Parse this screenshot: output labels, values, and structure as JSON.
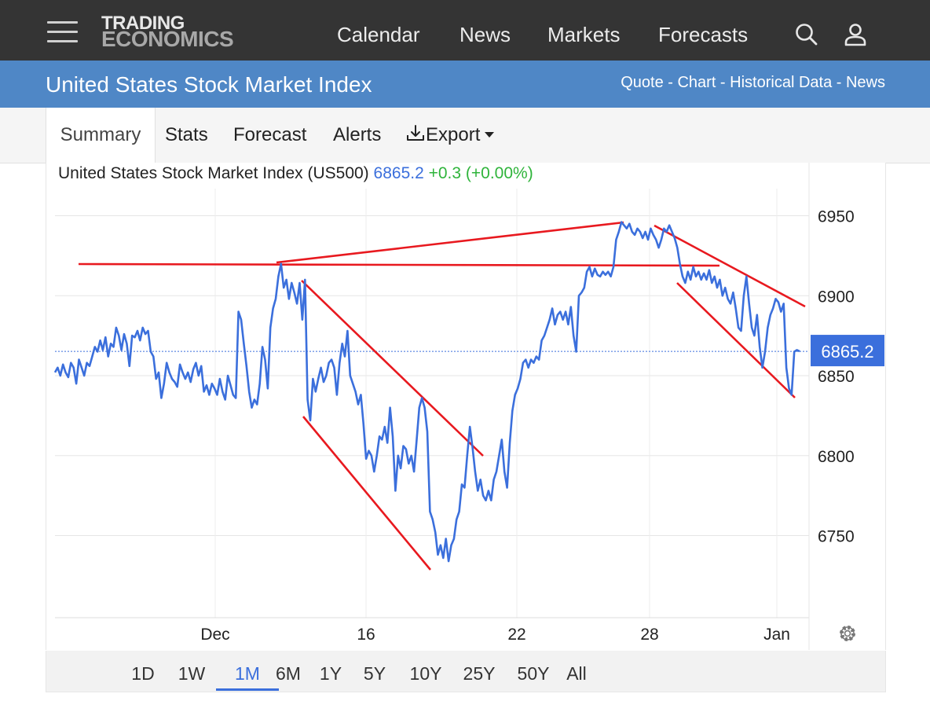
{
  "header": {
    "logo_line1": "TRADING",
    "logo_line2": "ECONOMICS",
    "nav": [
      "Calendar",
      "News",
      "Markets",
      "Forecasts"
    ]
  },
  "title_bar": {
    "title": "United States Stock Market Index",
    "links": [
      "Quote",
      "Chart",
      "Historical Data",
      "News"
    ],
    "separator": " - "
  },
  "tabs": {
    "summary": "Summary",
    "stats": "Stats",
    "forecast": "Forecast",
    "alerts": "Alerts",
    "export": "Export"
  },
  "quote": {
    "name": "United States Stock Market Index (US500)",
    "price": "6865.2",
    "change": "+0.3 (+0.00%)"
  },
  "ranges": [
    "1D",
    "1W",
    "1M",
    "6M",
    "1Y",
    "5Y",
    "10Y",
    "25Y",
    "50Y",
    "All"
  ],
  "active_range": "1M",
  "colors": {
    "topbar": "#343434",
    "titlebar": "#4f87c6",
    "series": "#3b6fdc",
    "trendlines": "#e8191f",
    "positive": "#2fb43b"
  },
  "chart_data": {
    "type": "line",
    "series": [
      {
        "values": [
          6852,
          6855,
          6850,
          6857,
          6852,
          6849,
          6858,
          6855,
          6845,
          6860,
          6855,
          6850,
          6858,
          6856,
          6862,
          6868,
          6865,
          6872,
          6866,
          6874,
          6862,
          6870,
          6868,
          6880,
          6875,
          6866,
          6876,
          6870,
          6856,
          6875,
          6874,
          6878,
          6872,
          6880,
          6876,
          6878,
          6865,
          6862,
          6848,
          6852,
          6836,
          6845,
          6858,
          6852,
          6848,
          6846,
          6843,
          6857,
          6852,
          6848,
          6852,
          6846,
          6854,
          6858,
          6850,
          6856,
          6840,
          6844,
          6838,
          6845,
          6842,
          6838,
          6848,
          6840,
          6835,
          6850,
          6844,
          6838,
          6836,
          6890,
          6885,
          6870,
          6856,
          6840,
          6830,
          6835,
          6832,
          6845,
          6868,
          6860,
          6842,
          6880,
          6892,
          6898,
          6912,
          6920,
          6905,
          6910,
          6898,
          6908,
          6902,
          6895,
          6908,
          6885,
          6910,
          6835,
          6822,
          6848,
          6840,
          6848,
          6855,
          6846,
          6850,
          6858,
          6860,
          6855,
          6838,
          6858,
          6870,
          6862,
          6878,
          6850,
          6845,
          6840,
          6832,
          6838,
          6820,
          6798,
          6803,
          6800,
          6790,
          6800,
          6812,
          6810,
          6818,
          6808,
          6830,
          6812,
          6778,
          6800,
          6792,
          6806,
          6804,
          6795,
          6800,
          6790,
          6810,
          6830,
          6836,
          6830,
          6815,
          6765,
          6760,
          6752,
          6738,
          6744,
          6736,
          6748,
          6734,
          6744,
          6748,
          6760,
          6765,
          6782,
          6780,
          6800,
          6818,
          6805,
          6790,
          6778,
          6785,
          6775,
          6772,
          6778,
          6772,
          6785,
          6790,
          6800,
          6810,
          6790,
          6780,
          6808,
          6828,
          6838,
          6842,
          6848,
          6858,
          6860,
          6855,
          6860,
          6858,
          6862,
          6860,
          6872,
          6875,
          6880,
          6885,
          6892,
          6882,
          6888,
          6890,
          6885,
          6890,
          6882,
          6893,
          6875,
          6865,
          6900,
          6902,
          6905,
          6915,
          6918,
          6912,
          6917,
          6913,
          6912,
          6915,
          6913,
          6915,
          6912,
          6918,
          6935,
          6940,
          6946,
          6944,
          6942,
          6945,
          6940,
          6938,
          6942,
          6940,
          6936,
          6940,
          6935,
          6942,
          6938,
          6935,
          6930,
          6935,
          6942,
          6940,
          6944,
          6940,
          6936,
          6930,
          6920,
          6912,
          6908,
          6915,
          6910,
          6918,
          6912,
          6915,
          6910,
          6914,
          6910,
          6916,
          6908,
          6912,
          6905,
          6910,
          6900,
          6905,
          6898,
          6895,
          6902,
          6892,
          6880,
          6878,
          6900,
          6912,
          6895,
          6880,
          6875,
          6888,
          6868,
          6855,
          6865,
          6880,
          6888,
          6892,
          6898,
          6896,
          6890,
          6895,
          6855,
          6842,
          6838,
          6865,
          6866,
          6865.2
        ]
      }
    ],
    "x_ticks": [
      "Dec",
      "16",
      "22",
      "28",
      "Jan"
    ],
    "y_ticks": [
      6750,
      6800,
      6850,
      6900,
      6950
    ],
    "y_range": [
      6700,
      6975
    ],
    "last_value_label": "6865.2",
    "grid": true
  }
}
